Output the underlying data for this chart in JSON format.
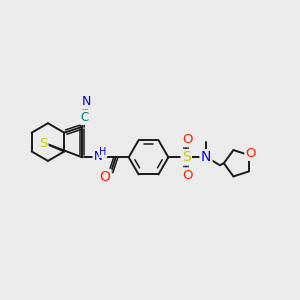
{
  "background_color": "#ebebeb",
  "bond_color": "#1a1a1a",
  "figsize": [
    3.0,
    3.0
  ],
  "dpi": 100,
  "colors": {
    "N": "#0000dd",
    "S": "#cccc00",
    "O": "#ff2200",
    "C_teal": "#008080"
  }
}
